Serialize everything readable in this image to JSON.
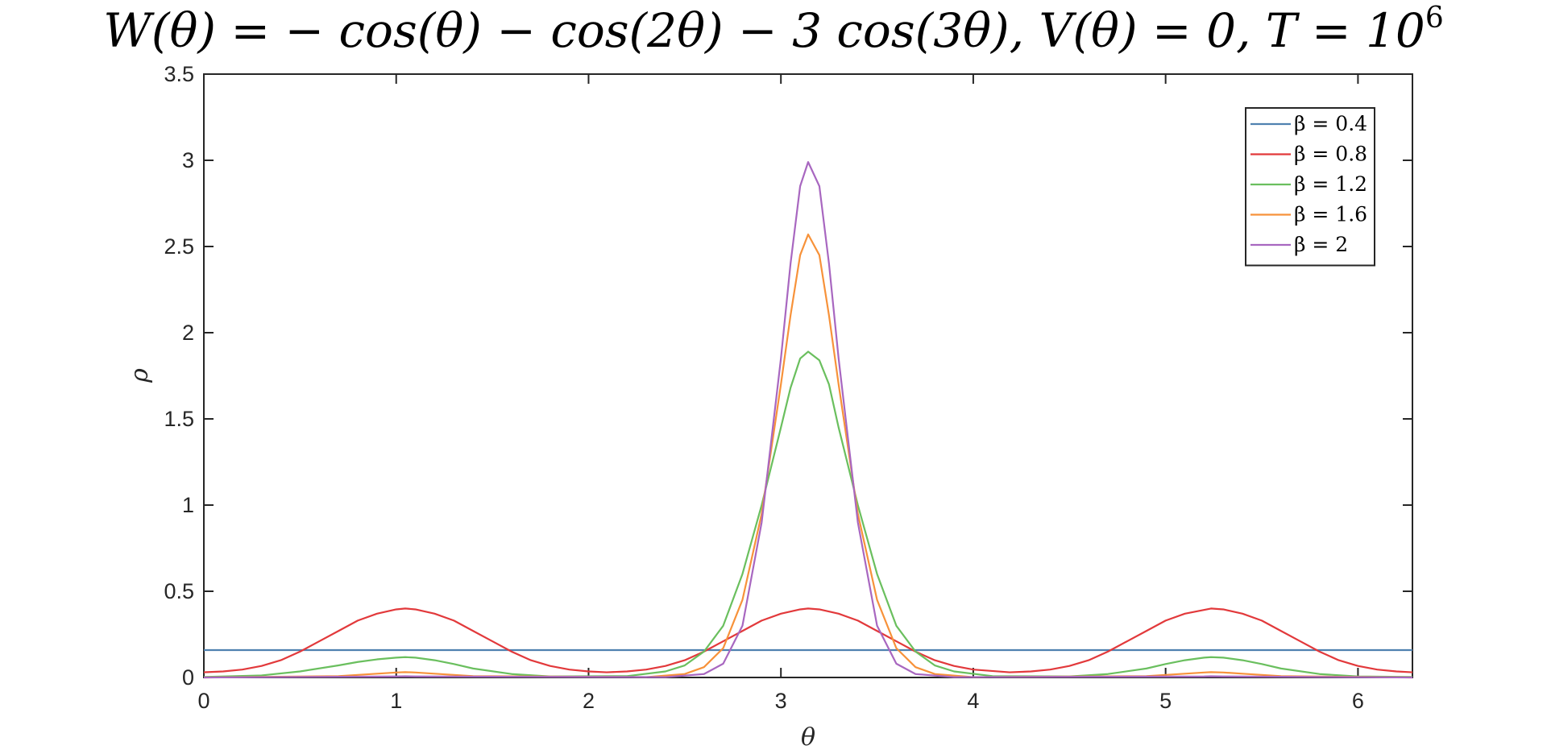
{
  "chart_data": {
    "type": "line",
    "title_parts": {
      "main": "W(θ) = − cos(θ) − cos(2θ) − 3 cos(3θ), V(θ) = 0, T = 10",
      "sup": "6"
    },
    "xlabel": "θ",
    "ylabel": "ρ",
    "xlim": [
      0,
      6.2832
    ],
    "ylim": [
      0,
      3.5
    ],
    "xticks": [
      0,
      1,
      2,
      3,
      4,
      5,
      6
    ],
    "yticks": [
      0,
      0.5,
      1,
      1.5,
      2,
      2.5,
      3,
      3.5
    ],
    "xtick_labels": [
      "0",
      "1",
      "2",
      "3",
      "4",
      "5",
      "6"
    ],
    "ytick_labels": [
      "0",
      "0.5",
      "1",
      "1.5",
      "2",
      "2.5",
      "3",
      "3.5"
    ],
    "grid": false,
    "legend_position": "top-right",
    "series": [
      {
        "name": "β = 0.4",
        "color": "#4f81b0",
        "x": [
          0,
          6.2832
        ],
        "y": [
          0.159,
          0.159
        ]
      },
      {
        "name": "β = 0.8",
        "color": "#e2393b",
        "x": [
          0,
          0.1,
          0.2,
          0.3,
          0.4,
          0.5,
          0.6,
          0.7,
          0.8,
          0.9,
          1.0,
          1.047,
          1.1,
          1.2,
          1.3,
          1.4,
          1.5,
          1.6,
          1.7,
          1.8,
          1.9,
          2.0,
          2.094,
          2.2,
          2.3,
          2.4,
          2.5,
          2.6,
          2.7,
          2.8,
          2.9,
          3.0,
          3.1,
          3.1416,
          3.2,
          3.3,
          3.4,
          3.5,
          3.6,
          3.7,
          3.8,
          3.9,
          4.0,
          4.189,
          4.3,
          4.4,
          4.5,
          4.6,
          4.7,
          4.8,
          4.9,
          5.0,
          5.1,
          5.236,
          5.3,
          5.4,
          5.5,
          5.6,
          5.7,
          5.8,
          5.9,
          6.0,
          6.1,
          6.2,
          6.2832
        ],
        "y": [
          0.03,
          0.035,
          0.046,
          0.067,
          0.1,
          0.15,
          0.21,
          0.27,
          0.33,
          0.37,
          0.395,
          0.4,
          0.395,
          0.37,
          0.33,
          0.27,
          0.21,
          0.15,
          0.1,
          0.067,
          0.046,
          0.035,
          0.03,
          0.035,
          0.046,
          0.067,
          0.1,
          0.15,
          0.21,
          0.27,
          0.33,
          0.37,
          0.395,
          0.4,
          0.395,
          0.37,
          0.33,
          0.27,
          0.21,
          0.15,
          0.1,
          0.067,
          0.046,
          0.03,
          0.035,
          0.046,
          0.067,
          0.1,
          0.15,
          0.21,
          0.27,
          0.33,
          0.37,
          0.4,
          0.395,
          0.37,
          0.33,
          0.27,
          0.21,
          0.15,
          0.1,
          0.067,
          0.046,
          0.035,
          0.03
        ]
      },
      {
        "name": "β = 1.2",
        "color": "#6abf5e",
        "x": [
          0,
          0.3,
          0.5,
          0.7,
          0.8,
          0.9,
          1.0,
          1.047,
          1.1,
          1.2,
          1.3,
          1.4,
          1.6,
          1.8,
          2.2,
          2.4,
          2.5,
          2.6,
          2.7,
          2.8,
          2.9,
          3.0,
          3.05,
          3.1,
          3.1416,
          3.2,
          3.25,
          3.3,
          3.4,
          3.5,
          3.6,
          3.7,
          3.8,
          3.9,
          4.1,
          4.5,
          4.7,
          4.9,
          5.0,
          5.1,
          5.2,
          5.236,
          5.3,
          5.4,
          5.5,
          5.6,
          5.8,
          6.0,
          6.2832
        ],
        "y": [
          0.003,
          0.012,
          0.035,
          0.07,
          0.09,
          0.105,
          0.115,
          0.118,
          0.115,
          0.1,
          0.078,
          0.052,
          0.02,
          0.006,
          0.008,
          0.035,
          0.07,
          0.15,
          0.3,
          0.6,
          1.0,
          1.45,
          1.68,
          1.85,
          1.89,
          1.84,
          1.7,
          1.45,
          1.0,
          0.6,
          0.3,
          0.15,
          0.07,
          0.035,
          0.008,
          0.006,
          0.02,
          0.052,
          0.078,
          0.1,
          0.115,
          0.118,
          0.115,
          0.1,
          0.078,
          0.052,
          0.02,
          0.006,
          0.003
        ]
      },
      {
        "name": "β = 1.6",
        "color": "#f7923a",
        "x": [
          0,
          0.7,
          0.9,
          1.0,
          1.047,
          1.1,
          1.2,
          1.4,
          2.3,
          2.5,
          2.6,
          2.7,
          2.8,
          2.9,
          3.0,
          3.05,
          3.1,
          3.1416,
          3.2,
          3.25,
          3.3,
          3.4,
          3.5,
          3.6,
          3.7,
          3.8,
          4.0,
          4.9,
          5.1,
          5.2,
          5.236,
          5.3,
          5.4,
          5.6,
          6.2832
        ],
        "y": [
          0,
          0.008,
          0.022,
          0.029,
          0.031,
          0.029,
          0.022,
          0.008,
          0.002,
          0.02,
          0.06,
          0.17,
          0.45,
          0.95,
          1.7,
          2.1,
          2.45,
          2.57,
          2.45,
          2.1,
          1.7,
          0.95,
          0.45,
          0.17,
          0.06,
          0.02,
          0.002,
          0.008,
          0.022,
          0.029,
          0.031,
          0.029,
          0.022,
          0.008,
          0
        ]
      },
      {
        "name": "β = 2",
        "color": "#a867c0",
        "x": [
          0,
          1.0,
          1.047,
          1.1,
          2.4,
          2.6,
          2.7,
          2.8,
          2.9,
          3.0,
          3.05,
          3.1,
          3.1416,
          3.2,
          3.25,
          3.3,
          3.4,
          3.5,
          3.6,
          3.7,
          3.9,
          5.2,
          5.236,
          5.3,
          6.2832
        ],
        "y": [
          0,
          0.006,
          0.007,
          0.006,
          0.002,
          0.02,
          0.08,
          0.3,
          0.9,
          1.85,
          2.4,
          2.85,
          2.99,
          2.85,
          2.4,
          1.85,
          0.9,
          0.3,
          0.08,
          0.02,
          0.002,
          0.006,
          0.007,
          0.006,
          0
        ]
      }
    ]
  }
}
